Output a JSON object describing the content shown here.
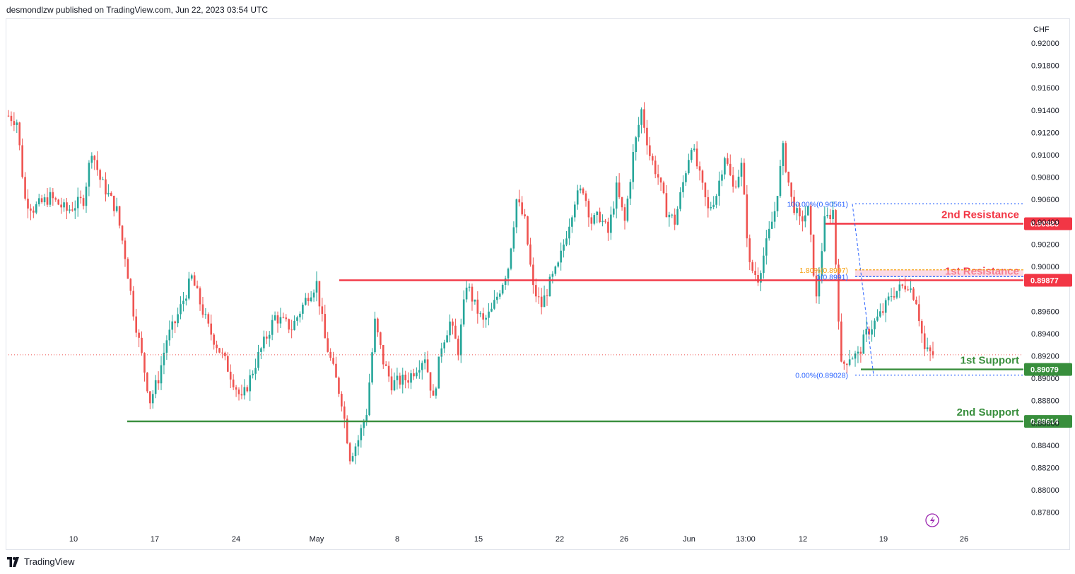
{
  "header": {
    "published": "desmondlzw published on TradingView.com, Jun 22, 2023 03:54 UTC"
  },
  "footer": {
    "brand": "TradingView"
  },
  "colors": {
    "up": "#26a69a",
    "down": "#ef5350",
    "resistance": "#f23645",
    "support": "#388e3c",
    "fib": "#2962ff",
    "fib_orange": "#f59e0b",
    "grid": "#e0e3eb"
  },
  "chart_data": {
    "type": "candlestick",
    "title": "",
    "currency": "CHF",
    "ylim": [
      0.8764,
      0.9212
    ],
    "y_ticks": [
      "0.92000",
      "0.91800",
      "0.91600",
      "0.91400",
      "0.91200",
      "0.91000",
      "0.90800",
      "0.90600",
      "0.90400",
      "0.90200",
      "0.90000",
      "0.89600",
      "0.89400",
      "0.89200",
      "0.89000",
      "0.88800",
      "0.88600",
      "0.88400",
      "0.88200",
      "0.88000",
      "0.87800"
    ],
    "x_ticks": [
      "10",
      "17",
      "24",
      "May",
      "8",
      "15",
      "22",
      "26",
      "Jun",
      "13:00",
      "12",
      "19",
      "26"
    ],
    "last_price": 0.8921,
    "levels": [
      {
        "name": "2nd Resistance",
        "price": 0.90383,
        "label": "0.90383",
        "text": "2nd Resistance",
        "kind": "resistance"
      },
      {
        "name": "1st Resistance",
        "price": 0.89877,
        "label": "0.89877",
        "text": "1st Resistance",
        "kind": "resistance"
      },
      {
        "name": "1st Support",
        "price": 0.89079,
        "label": "0.89079",
        "text": "1st Support",
        "kind": "support"
      },
      {
        "name": "2nd Support",
        "price": 0.88614,
        "label": "0.88614",
        "text": "2nd Support",
        "kind": "support"
      }
    ],
    "fibonacci": [
      {
        "label": "100.00%(0.90561)",
        "price": 0.90561
      },
      {
        "label": "1.80%(0.8997)",
        "price": 0.8997
      },
      {
        "label": "1(0.8991)",
        "price": 0.8991
      },
      {
        "label": "0.00%(0.89028)",
        "price": 0.89028
      }
    ],
    "path_waypoints": [
      {
        "d": 0,
        "v": 0.9135
      },
      {
        "d": 1,
        "v": 0.913
      },
      {
        "d": 2,
        "v": 0.906
      },
      {
        "d": 3,
        "v": 0.9052
      },
      {
        "d": 5,
        "v": 0.9062
      },
      {
        "d": 7,
        "v": 0.905
      },
      {
        "d": 9,
        "v": 0.906
      },
      {
        "d": 10,
        "v": 0.9105
      },
      {
        "d": 11,
        "v": 0.9078
      },
      {
        "d": 13,
        "v": 0.905
      },
      {
        "d": 14,
        "v": 0.901
      },
      {
        "d": 15,
        "v": 0.896
      },
      {
        "d": 16,
        "v": 0.892
      },
      {
        "d": 17,
        "v": 0.888
      },
      {
        "d": 18,
        "v": 0.89
      },
      {
        "d": 19,
        "v": 0.8935
      },
      {
        "d": 20,
        "v": 0.895
      },
      {
        "d": 22,
        "v": 0.899
      },
      {
        "d": 24,
        "v": 0.8945
      },
      {
        "d": 26,
        "v": 0.8915
      },
      {
        "d": 28,
        "v": 0.888
      },
      {
        "d": 29,
        "v": 0.89
      },
      {
        "d": 30,
        "v": 0.892
      },
      {
        "d": 32,
        "v": 0.8955
      },
      {
        "d": 34,
        "v": 0.8945
      },
      {
        "d": 36,
        "v": 0.8975
      },
      {
        "d": 37,
        "v": 0.8985
      },
      {
        "d": 38,
        "v": 0.8935
      },
      {
        "d": 40,
        "v": 0.888
      },
      {
        "d": 41,
        "v": 0.883
      },
      {
        "d": 42,
        "v": 0.8845
      },
      {
        "d": 43,
        "v": 0.887
      },
      {
        "d": 44,
        "v": 0.895
      },
      {
        "d": 45,
        "v": 0.8915
      },
      {
        "d": 46,
        "v": 0.8895
      },
      {
        "d": 48,
        "v": 0.89
      },
      {
        "d": 50,
        "v": 0.892
      },
      {
        "d": 51,
        "v": 0.888
      },
      {
        "d": 52,
        "v": 0.893
      },
      {
        "d": 53,
        "v": 0.895
      },
      {
        "d": 54,
        "v": 0.8925
      },
      {
        "d": 55,
        "v": 0.8985
      },
      {
        "d": 56,
        "v": 0.8965
      },
      {
        "d": 57,
        "v": 0.895
      },
      {
        "d": 58,
        "v": 0.896
      },
      {
        "d": 59,
        "v": 0.898
      },
      {
        "d": 60,
        "v": 0.9
      },
      {
        "d": 61,
        "v": 0.906
      },
      {
        "d": 62,
        "v": 0.904
      },
      {
        "d": 63,
        "v": 0.898
      },
      {
        "d": 64,
        "v": 0.8965
      },
      {
        "d": 65,
        "v": 0.8985
      },
      {
        "d": 66,
        "v": 0.9
      },
      {
        "d": 67,
        "v": 0.903
      },
      {
        "d": 68,
        "v": 0.906
      },
      {
        "d": 69,
        "v": 0.907
      },
      {
        "d": 70,
        "v": 0.904
      },
      {
        "d": 71,
        "v": 0.9045
      },
      {
        "d": 72,
        "v": 0.903
      },
      {
        "d": 73,
        "v": 0.907
      },
      {
        "d": 74,
        "v": 0.904
      },
      {
        "d": 75,
        "v": 0.91
      },
      {
        "d": 76,
        "v": 0.914
      },
      {
        "d": 77,
        "v": 0.91
      },
      {
        "d": 78,
        "v": 0.908
      },
      {
        "d": 79,
        "v": 0.905
      },
      {
        "d": 80,
        "v": 0.904
      },
      {
        "d": 81,
        "v": 0.9075
      },
      {
        "d": 82,
        "v": 0.911
      },
      {
        "d": 83,
        "v": 0.908
      },
      {
        "d": 84,
        "v": 0.905
      },
      {
        "d": 85,
        "v": 0.9065
      },
      {
        "d": 86,
        "v": 0.91
      },
      {
        "d": 87,
        "v": 0.907
      },
      {
        "d": 88,
        "v": 0.909
      },
      {
        "d": 89,
        "v": 0.9
      },
      {
        "d": 90,
        "v": 0.899
      },
      {
        "d": 91,
        "v": 0.902
      },
      {
        "d": 92,
        "v": 0.905
      },
      {
        "d": 93,
        "v": 0.9105
      },
      {
        "d": 94,
        "v": 0.906
      },
      {
        "d": 95,
        "v": 0.904
      },
      {
        "d": 96,
        "v": 0.905
      },
      {
        "d": 97,
        "v": 0.897
      },
      {
        "d": 98,
        "v": 0.904
      },
      {
        "d": 99,
        "v": 0.905
      },
      {
        "d": 100,
        "v": 0.891
      },
      {
        "d": 101,
        "v": 0.892
      },
      {
        "d": 102,
        "v": 0.892
      },
      {
        "d": 103,
        "v": 0.894
      },
      {
        "d": 104,
        "v": 0.895
      },
      {
        "d": 105,
        "v": 0.896
      },
      {
        "d": 106,
        "v": 0.8975
      },
      {
        "d": 107,
        "v": 0.898
      },
      {
        "d": 108,
        "v": 0.8985
      },
      {
        "d": 109,
        "v": 0.897
      },
      {
        "d": 110,
        "v": 0.8925
      },
      {
        "d": 111,
        "v": 0.8921
      }
    ]
  }
}
